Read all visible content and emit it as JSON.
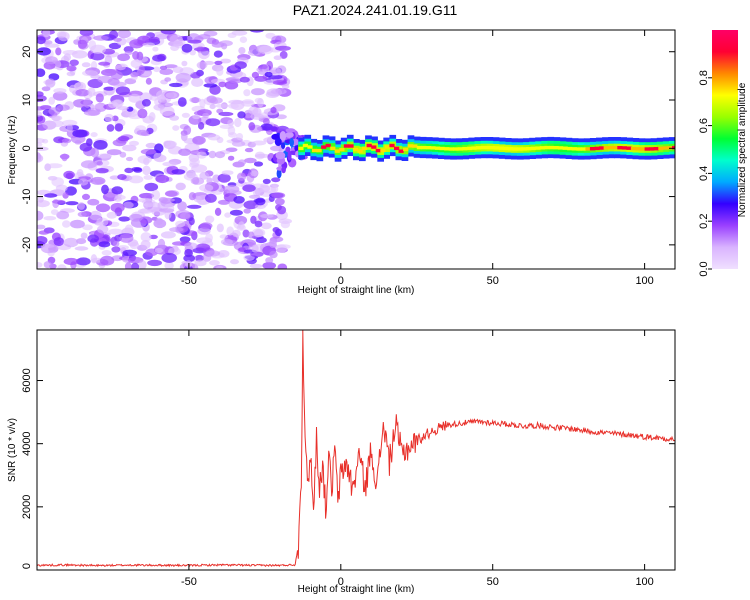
{
  "figure": {
    "title": "PAZ1.2024.241.01.19.G11"
  },
  "chart_data": [
    {
      "type": "heatmap",
      "xlabel": "Height of straight line (km)",
      "ylabel": "Frequency (Hz)",
      "xlim": [
        -100,
        110
      ],
      "ylim": [
        -25,
        24.5
      ],
      "x_ticks": [
        -50,
        0,
        50,
        100
      ],
      "y_ticks": [
        -20,
        -10,
        0,
        10,
        20
      ],
      "regions": [
        {
          "description": "random noise speckle",
          "x_range": [
            -100,
            -18
          ],
          "y_range": [
            -25,
            24.5
          ],
          "amplitude_range": [
            0.05,
            0.25
          ]
        },
        {
          "description": "transition zone",
          "x_range": [
            -22,
            -12
          ],
          "y_range": [
            -6,
            6
          ],
          "amplitude_range": [
            0.1,
            0.35
          ]
        },
        {
          "description": "narrow signal line near 0 Hz",
          "x_range": [
            -14,
            110
          ],
          "center_frequency": 0,
          "amplitude_range": [
            0.4,
            0.95
          ]
        }
      ],
      "colorbar": {
        "label": "Normalized spectral amplitude",
        "range": [
          0,
          1
        ],
        "ticks": [
          0.0,
          0.2,
          0.4,
          0.6,
          0.8
        ],
        "tick_labels": [
          "0.0",
          "0.2",
          "0.4",
          "0.6",
          "0.8"
        ],
        "colors": [
          "#f0e0ff",
          "#d9b3ff",
          "#9a40ff",
          "#3300ff",
          "#00aaff",
          "#00ffcc",
          "#00ff33",
          "#99ff00",
          "#ffff00",
          "#ff8800",
          "#ff0033",
          "#ff0066"
        ]
      }
    },
    {
      "type": "line",
      "xlabel": "Height of straight line (km)",
      "ylabel": "SNR (10 * v/v)",
      "xlim": [
        -100,
        110
      ],
      "ylim": [
        0,
        7600
      ],
      "x_ticks": [
        -50,
        0,
        50,
        100
      ],
      "y_ticks": [
        0,
        2000,
        4000,
        6000
      ],
      "color": "#e8302a",
      "series": [
        {
          "x": [
            -100,
            -90,
            -80,
            -70,
            -60,
            -50,
            -40,
            -30,
            -20,
            -15,
            -14,
            -13,
            -12.5,
            -12,
            -11,
            -10,
            -9,
            -8,
            -7,
            -6,
            -5,
            -4,
            -3,
            -2,
            -1,
            0,
            2,
            4,
            6,
            8,
            10,
            12,
            14,
            16,
            18,
            20,
            25,
            30,
            35,
            40,
            45,
            50,
            55,
            60,
            65,
            70,
            75,
            80,
            85,
            90,
            95,
            100,
            105,
            110
          ],
          "y": [
            150,
            160,
            140,
            155,
            150,
            145,
            160,
            150,
            145,
            170,
            800,
            3000,
            7600,
            5100,
            2500,
            3800,
            1800,
            4200,
            2600,
            3400,
            1900,
            3600,
            2500,
            3900,
            2200,
            3000,
            3400,
            2500,
            3700,
            2600,
            3800,
            2700,
            4700,
            3400,
            4600,
            3700,
            4100,
            4400,
            4600,
            4650,
            4700,
            4660,
            4620,
            4560,
            4580,
            4520,
            4480,
            4420,
            4360,
            4320,
            4280,
            4220,
            4180,
            4140
          ]
        }
      ]
    }
  ]
}
